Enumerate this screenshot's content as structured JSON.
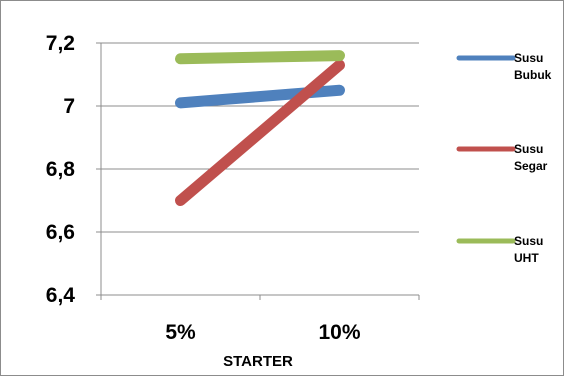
{
  "chart_data": {
    "type": "line",
    "categories": [
      "5%",
      "10%"
    ],
    "series": [
      {
        "name": "Susu Bubuk",
        "values": [
          7.01,
          7.05
        ],
        "color": "#4f81bd"
      },
      {
        "name": "Susu Segar",
        "values": [
          6.7,
          7.13
        ],
        "color": "#c0504d"
      },
      {
        "name": "Susu UHT",
        "values": [
          7.15,
          7.16
        ],
        "color": "#9bbb59"
      }
    ],
    "title": "",
    "xlabel": "STARTER",
    "ylabel": "",
    "ylim": [
      6.4,
      7.2
    ],
    "yticks": [
      6.4,
      6.6,
      6.8,
      7.0,
      7.2
    ],
    "ytick_labels": [
      "6,4",
      "6,6",
      "6,8",
      "7",
      "7,2"
    ],
    "grid": "horizontal",
    "legend": "right"
  }
}
